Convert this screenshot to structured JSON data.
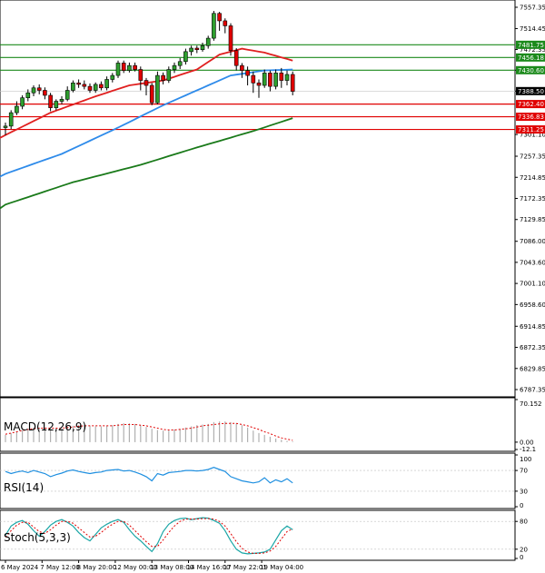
{
  "chart_data": {
    "type": "candlestick",
    "price_axis": {
      "ylim": [
        6787.35,
        7557.35
      ],
      "ticks": [
        "7557.35",
        "7514.45",
        "7472.35",
        "7430.60",
        "7388.50",
        "7301.10",
        "7257.35",
        "7214.85",
        "7172.35",
        "7129.85",
        "7086.00",
        "7043.60",
        "7001.10",
        "6958.60",
        "6914.85",
        "6872.35",
        "6829.85",
        "6787.35"
      ],
      "tick_values": [
        7557.35,
        7514.45,
        7472.35,
        7430.6,
        7388.5,
        7301.1,
        7257.35,
        7214.85,
        7172.35,
        7129.85,
        7086.0,
        7043.6,
        7001.1,
        6958.6,
        6914.85,
        6872.35,
        6829.85,
        6787.35
      ]
    },
    "levels": [
      {
        "value": 7481.75,
        "label": "7481.75",
        "color": "#1b8a1b"
      },
      {
        "value": 7456.18,
        "label": "7456.18",
        "color": "#1b8a1b"
      },
      {
        "value": 7430.6,
        "label": "7430.60",
        "color": "#1b8a1b"
      },
      {
        "value": 7362.4,
        "label": "7362.40",
        "color": "#e00000"
      },
      {
        "value": 7336.83,
        "label": "7336.83",
        "color": "#e00000"
      },
      {
        "value": 7311.25,
        "label": "7311.25",
        "color": "#e00000"
      }
    ],
    "current_price": {
      "value": 7388.5,
      "label": "7388.50"
    },
    "candles": [
      [
        7315,
        7318,
        7300,
        7325
      ],
      [
        7318,
        7345,
        7312,
        7350
      ],
      [
        7345,
        7358,
        7340,
        7368
      ],
      [
        7358,
        7375,
        7352,
        7380
      ],
      [
        7375,
        7385,
        7368,
        7392
      ],
      [
        7385,
        7395,
        7378,
        7400
      ],
      [
        7395,
        7390,
        7382,
        7402
      ],
      [
        7390,
        7380,
        7372,
        7396
      ],
      [
        7380,
        7355,
        7348,
        7385
      ],
      [
        7355,
        7368,
        7350,
        7372
      ],
      [
        7368,
        7372,
        7362,
        7378
      ],
      [
        7372,
        7390,
        7368,
        7398
      ],
      [
        7390,
        7405,
        7386,
        7410
      ],
      [
        7405,
        7402,
        7395,
        7412
      ],
      [
        7402,
        7398,
        7392,
        7410
      ],
      [
        7398,
        7390,
        7385,
        7404
      ],
      [
        7390,
        7402,
        7385,
        7406
      ],
      [
        7402,
        7395,
        7390,
        7408
      ],
      [
        7395,
        7412,
        7390,
        7418
      ],
      [
        7412,
        7420,
        7406,
        7425
      ],
      [
        7420,
        7445,
        7415,
        7450
      ],
      [
        7445,
        7430,
        7425,
        7450
      ],
      [
        7430,
        7440,
        7426,
        7446
      ],
      [
        7440,
        7432,
        7428,
        7446
      ],
      [
        7432,
        7410,
        7390,
        7438
      ],
      [
        7410,
        7400,
        7380,
        7415
      ],
      [
        7400,
        7365,
        7360,
        7405
      ],
      [
        7365,
        7420,
        7362,
        7428
      ],
      [
        7420,
        7410,
        7402,
        7426
      ],
      [
        7410,
        7432,
        7405,
        7438
      ],
      [
        7432,
        7440,
        7425,
        7446
      ],
      [
        7440,
        7448,
        7433,
        7455
      ],
      [
        7448,
        7468,
        7442,
        7474
      ],
      [
        7468,
        7475,
        7460,
        7480
      ],
      [
        7475,
        7472,
        7465,
        7480
      ],
      [
        7472,
        7480,
        7468,
        7486
      ],
      [
        7480,
        7495,
        7474,
        7500
      ],
      [
        7495,
        7545,
        7490,
        7550
      ],
      [
        7545,
        7530,
        7510,
        7548
      ],
      [
        7530,
        7520,
        7505,
        7535
      ],
      [
        7520,
        7470,
        7460,
        7525
      ],
      [
        7470,
        7440,
        7430,
        7475
      ],
      [
        7440,
        7430,
        7415,
        7445
      ],
      [
        7430,
        7420,
        7400,
        7438
      ],
      [
        7420,
        7405,
        7385,
        7428
      ],
      [
        7405,
        7400,
        7375,
        7412
      ],
      [
        7400,
        7425,
        7395,
        7432
      ],
      [
        7425,
        7398,
        7388,
        7430
      ],
      [
        7398,
        7425,
        7392,
        7432
      ],
      [
        7425,
        7410,
        7395,
        7435
      ],
      [
        7410,
        7422,
        7400,
        7430
      ],
      [
        7422,
        7388,
        7380,
        7428
      ]
    ],
    "sma_fast": [
      [
        0,
        7300
      ],
      [
        8,
        7345
      ],
      [
        16,
        7378
      ],
      [
        22,
        7400
      ],
      [
        28,
        7410
      ],
      [
        34,
        7432
      ],
      [
        38,
        7462
      ],
      [
        42,
        7474
      ],
      [
        46,
        7466
      ],
      [
        51,
        7450
      ]
    ],
    "sma_mid": [
      [
        0,
        7222
      ],
      [
        10,
        7262
      ],
      [
        20,
        7315
      ],
      [
        28,
        7360
      ],
      [
        34,
        7390
      ],
      [
        40,
        7420
      ],
      [
        46,
        7430
      ],
      [
        51,
        7432
      ]
    ],
    "sma_slow": [
      [
        0,
        7160
      ],
      [
        12,
        7205
      ],
      [
        24,
        7240
      ],
      [
        34,
        7275
      ],
      [
        44,
        7308
      ],
      [
        51,
        7334
      ]
    ],
    "x_labels": [
      "6 May 2024",
      "7 May 12:00",
      "8 May 20:00",
      "12 May 00:00",
      "13 May 08:00",
      "14 May 16:00",
      "17 May 22:01",
      "19 May 04:00"
    ],
    "x_label_positions": [
      0,
      6.5,
      13,
      19.5,
      26,
      32.5,
      39,
      45.5
    ],
    "macd": {
      "title": "MACD(12,26,9)",
      "ticks": [
        "70.152",
        "0.00",
        "-12.1"
      ],
      "tick_values": [
        70.152,
        0.0,
        -12.1
      ],
      "ylim": [
        -12.1,
        70.152
      ],
      "histogram": [
        12,
        15,
        17,
        20,
        22,
        24,
        24,
        23,
        22,
        22,
        23,
        25,
        27,
        28,
        28,
        27,
        26,
        26,
        27,
        28,
        30,
        31,
        31,
        30,
        28,
        25,
        22,
        20,
        19,
        19,
        21,
        22,
        24,
        26,
        28,
        29,
        30,
        33,
        34,
        34,
        33,
        31,
        28,
        24,
        19,
        15,
        12,
        9,
        6,
        4,
        2,
        1
      ],
      "signal": [
        13,
        15,
        17,
        19,
        21,
        22,
        23,
        23,
        23,
        23,
        23,
        24,
        25,
        26,
        27,
        27,
        27,
        27,
        27,
        27,
        28,
        29,
        29,
        29,
        28,
        27,
        25,
        23,
        21,
        20,
        20,
        21,
        22,
        23,
        25,
        27,
        28,
        29,
        30,
        31,
        31,
        31,
        29,
        27,
        24,
        21,
        17,
        14,
        10,
        7,
        5,
        3
      ]
    },
    "rsi": {
      "title": "RSI(14)",
      "ticks": [
        "100",
        "70",
        "30",
        "0"
      ],
      "tick_values": [
        100,
        70,
        30,
        0
      ],
      "values": [
        68,
        64,
        67,
        69,
        66,
        70,
        67,
        64,
        58,
        62,
        65,
        69,
        71,
        68,
        66,
        64,
        66,
        67,
        70,
        71,
        72,
        69,
        70,
        67,
        63,
        58,
        50,
        64,
        61,
        66,
        67,
        68,
        70,
        70,
        69,
        70,
        72,
        76,
        72,
        68,
        58,
        54,
        50,
        48,
        46,
        48,
        56,
        46,
        52,
        48,
        54,
        46
      ]
    },
    "stoch": {
      "title": "Stoch(5,3,3)",
      "ticks": [
        "80",
        "20",
        "0"
      ],
      "tick_values": [
        80,
        20,
        0
      ],
      "k": [
        50,
        70,
        78,
        82,
        74,
        60,
        48,
        58,
        72,
        80,
        84,
        78,
        70,
        56,
        45,
        38,
        52,
        66,
        74,
        80,
        84,
        78,
        62,
        48,
        38,
        26,
        15,
        32,
        58,
        74,
        82,
        86,
        87,
        84,
        86,
        88,
        87,
        82,
        76,
        60,
        38,
        20,
        12,
        10,
        11,
        12,
        14,
        20,
        40,
        60,
        70,
        62
      ],
      "d": [
        46,
        60,
        72,
        78,
        78,
        68,
        58,
        54,
        62,
        72,
        80,
        80,
        76,
        66,
        56,
        46,
        48,
        56,
        66,
        74,
        80,
        80,
        72,
        60,
        48,
        36,
        26,
        26,
        40,
        56,
        70,
        80,
        85,
        85,
        85,
        86,
        86,
        85,
        80,
        70,
        54,
        36,
        22,
        14,
        11,
        11,
        12,
        16,
        26,
        42,
        58,
        64
      ]
    }
  }
}
